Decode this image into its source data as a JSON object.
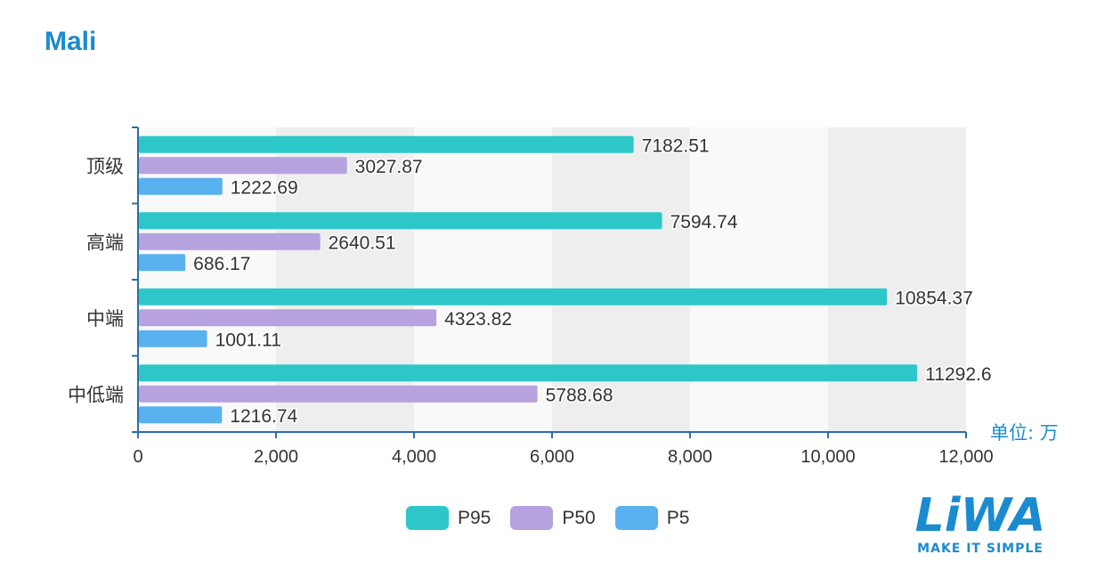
{
  "title": "Mali",
  "unit_label": "单位: 万",
  "logo": {
    "text": "LiWA",
    "tagline": "MAKE IT SIMPLE",
    "color": "#1a8bd0"
  },
  "colors": {
    "P95": "#2ec7c9",
    "P50": "#b6a2de",
    "P5": "#5ab1ef"
  },
  "chart_data": {
    "type": "bar",
    "orientation": "horizontal",
    "categories": [
      "顶级",
      "高端",
      "中端",
      "中低端"
    ],
    "series": [
      {
        "name": "P95",
        "values": [
          7182.51,
          7594.74,
          10854.37,
          11292.6
        ]
      },
      {
        "name": "P50",
        "values": [
          3027.87,
          2640.51,
          4323.82,
          5788.68
        ]
      },
      {
        "name": "P5",
        "values": [
          1222.69,
          686.17,
          1001.11,
          1216.74
        ]
      }
    ],
    "xlim": [
      0,
      12000
    ],
    "xticks": [
      "0",
      "2,000",
      "4,000",
      "6,000",
      "8,000",
      "10,000",
      "12,000"
    ],
    "legend_position": "bottom-center",
    "grid": "alternating vertical bands"
  }
}
